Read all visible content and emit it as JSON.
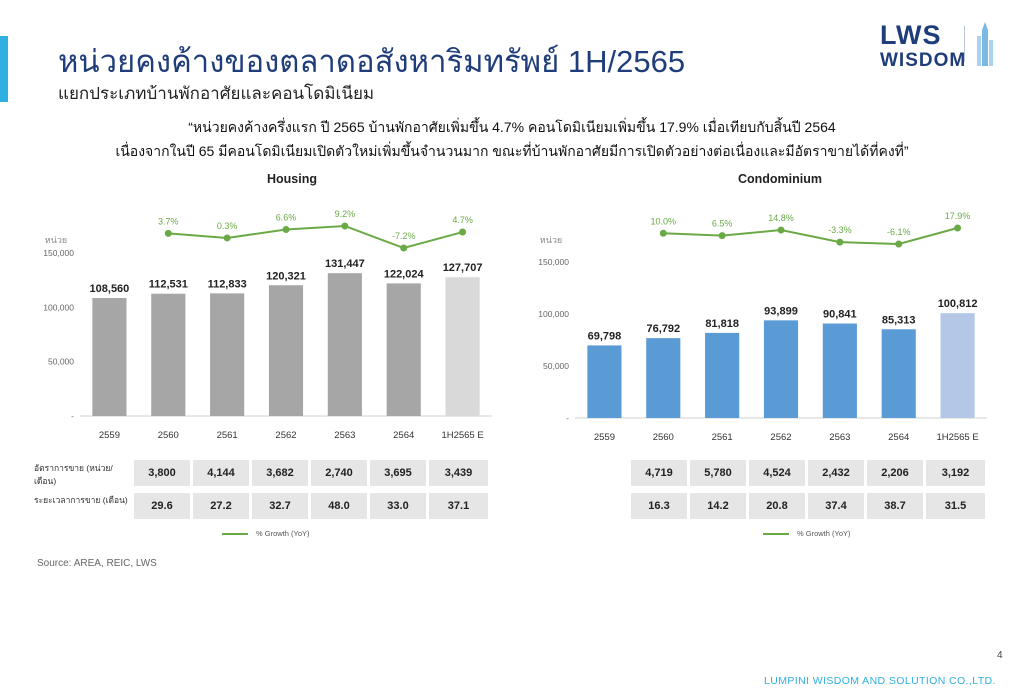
{
  "header": {
    "title": "หน่วยคงค้างของตลาดอสังหาริมทรัพย์ 1H/2565",
    "subtitle": "แยกประเภทบ้านพักอาศัยและคอนโดมิเนียม",
    "logo_top": "LWS",
    "logo_bottom": "WISDOM"
  },
  "quote": {
    "line1": "“หน่วยคงค้างครึ่งแรก ปี 2565 บ้านพักอาศัยเพิ่มขึ้น 4.7% คอนโดมิเนียมเพิ่มขึ้น 17.9% เมื่อเทียบกับสิ้นปี 2564",
    "line2": "เนื่องจากในปี 65 มีคอนโดมิเนียมเปิดตัวใหม่เพิ่มขึ้นจำนวนมาก ขณะที่บ้านพักอาศัยมีการเปิดตัวอย่างต่อเนื่องและมีอัตราขายได้ที่คงที่”"
  },
  "colors": {
    "housing_bar": "#a6a6a6",
    "housing_bar_forecast": "#d9d9d9",
    "condo_bar": "#5b9bd5",
    "condo_bar_forecast": "#b4c7e7",
    "growth_line": "#6aaa46",
    "title": "#1f3d7a",
    "accent": "#2fb0e0"
  },
  "chart_data": [
    {
      "type": "bar",
      "title": "Housing",
      "ylabel": "หน่วย",
      "categories": [
        "2559",
        "2560",
        "2561",
        "2562",
        "2563",
        "2564",
        "1H2565 E"
      ],
      "values": [
        108560,
        112531,
        112833,
        120321,
        131447,
        122024,
        127707
      ],
      "value_labels": [
        "108,560",
        "112,531",
        "112,833",
        "120,321",
        "131,447",
        "122,024",
        "127,707"
      ],
      "ylim": [
        0,
        150000
      ],
      "yticks": [
        "150,000",
        "100,000",
        "50,000",
        "-"
      ],
      "ytick_values": [
        150000,
        100000,
        50000,
        0
      ],
      "growth": {
        "name": "% Growth (YoY)",
        "values": [
          3.7,
          0.3,
          6.6,
          9.2,
          -7.2,
          4.7
        ],
        "labels": [
          "3.7%",
          "0.3%",
          "6.6%",
          "9.2%",
          "-7.2%",
          "4.7%"
        ]
      },
      "table": [
        {
          "label": "อัตราการขาย (หน่วย/เดือน)",
          "values": [
            "3,800",
            "4,144",
            "3,682",
            "2,740",
            "3,695",
            "3,439"
          ]
        },
        {
          "label": "ระยะเวลาการขาย (เดือน)",
          "values": [
            "29.6",
            "27.2",
            "32.7",
            "48.0",
            "33.0",
            "37.1"
          ]
        }
      ],
      "legend": "% Growth (YoY)"
    },
    {
      "type": "bar",
      "title": "Condominium",
      "ylabel": "หน่วย",
      "categories": [
        "2559",
        "2560",
        "2561",
        "2562",
        "2563",
        "2564",
        "1H2565 E"
      ],
      "values": [
        69798,
        76792,
        81818,
        93899,
        90841,
        85313,
        100812
      ],
      "value_labels": [
        "69,798",
        "76,792",
        "81,818",
        "93,899",
        "90,841",
        "85,313",
        "100,812"
      ],
      "ylim": [
        0,
        150000
      ],
      "yticks": [
        "150,000",
        "100,000",
        "50,000",
        "-"
      ],
      "ytick_values": [
        150000,
        100000,
        50000,
        0
      ],
      "growth": {
        "name": "% Growth (YoY)",
        "values": [
          10.0,
          6.5,
          14.8,
          -3.3,
          -6.1,
          17.9
        ],
        "labels": [
          "10.0%",
          "6.5%",
          "14.8%",
          "-3.3%",
          "-6.1%",
          "17.9%"
        ]
      },
      "table": [
        {
          "label": "",
          "values": [
            "4,719",
            "5,780",
            "4,524",
            "2,432",
            "2,206",
            "3,192"
          ]
        },
        {
          "label": "",
          "values": [
            "16.3",
            "14.2",
            "20.8",
            "37.4",
            "38.7",
            "31.5"
          ]
        }
      ],
      "legend": "% Growth (YoY)"
    }
  ],
  "footer": {
    "source": "Source: AREA, REIC, LWS",
    "page": "4",
    "company": "LUMPINI WISDOM AND SOLUTION CO.,LTD."
  }
}
